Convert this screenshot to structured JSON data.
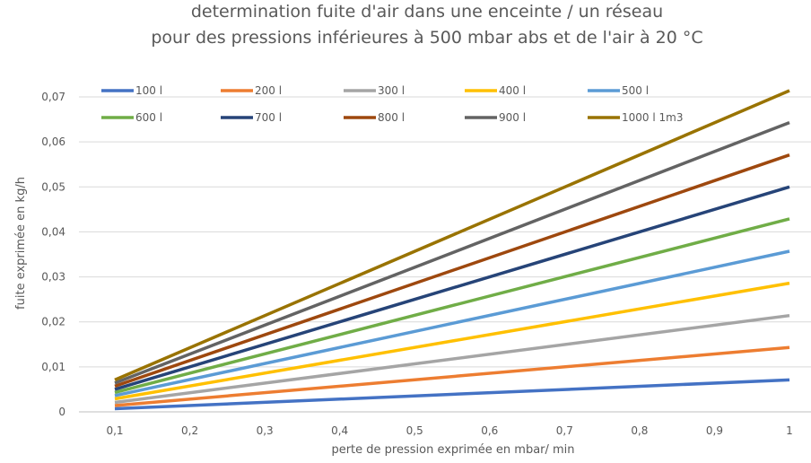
{
  "chart_data": {
    "type": "line",
    "title": [
      "determination fuite d'air  dans une enceinte / un réseau",
      "pour des pressions inférieures à  500 mbar abs  et de l'air à 20 °C"
    ],
    "xlabel": "perte de pression exprimée en mbar/ min",
    "ylabel": "fuite exprimée en kg/h",
    "x": [
      0.1,
      1
    ],
    "xlim": [
      0.1,
      1
    ],
    "ylim": [
      0,
      0.07
    ],
    "x_ticks": [
      "0,1",
      "0,2",
      "0,3",
      "0,4",
      "0,5",
      "0,6",
      "0,7",
      "0,8",
      "0,9",
      "1"
    ],
    "y_ticks": [
      "0",
      "0,01",
      "0,02",
      "0,03",
      "0,04",
      "0,05",
      "0,06",
      "0,07"
    ],
    "grid": "horizontal",
    "legend_position": "top",
    "series": [
      {
        "name": "100 l",
        "color": "#4472c4",
        "values": [
          0.0007,
          0.0071
        ]
      },
      {
        "name": "200 l",
        "color": "#ed7d31",
        "values": [
          0.0014,
          0.0143
        ]
      },
      {
        "name": "300 l",
        "color": "#a5a5a5",
        "values": [
          0.0021,
          0.0214
        ]
      },
      {
        "name": "400 l",
        "color": "#ffc000",
        "values": [
          0.0029,
          0.0286
        ]
      },
      {
        "name": "500 l",
        "color": "#5b9bd5",
        "values": [
          0.0036,
          0.0357
        ]
      },
      {
        "name": "600 l",
        "color": "#70ad47",
        "values": [
          0.0043,
          0.0429
        ]
      },
      {
        "name": "700 l",
        "color": "#264478",
        "values": [
          0.005,
          0.05
        ]
      },
      {
        "name": "800 l",
        "color": "#9e480e",
        "values": [
          0.0057,
          0.0571
        ]
      },
      {
        "name": "900 l",
        "color": "#636363",
        "values": [
          0.0064,
          0.0643
        ]
      },
      {
        "name": "1000 l 1m3",
        "color": "#997300",
        "values": [
          0.0071,
          0.0714
        ]
      }
    ]
  }
}
